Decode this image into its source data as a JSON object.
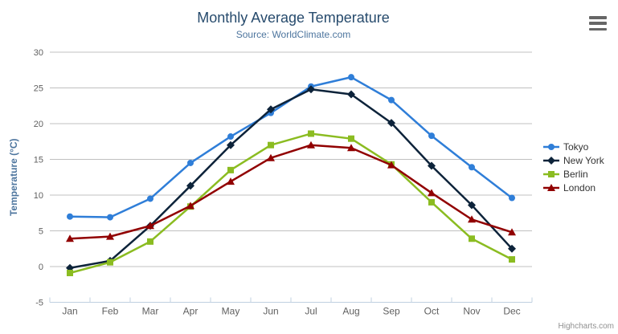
{
  "chart_data": {
    "type": "line",
    "title": "Monthly Average Temperature",
    "subtitle": "Source: WorldClimate.com",
    "categories": [
      "Jan",
      "Feb",
      "Mar",
      "Apr",
      "May",
      "Jun",
      "Jul",
      "Aug",
      "Sep",
      "Oct",
      "Nov",
      "Dec"
    ],
    "series": [
      {
        "name": "Tokyo",
        "color": "#2f7ed8",
        "marker": "circle",
        "values": [
          7.0,
          6.9,
          9.5,
          14.5,
          18.2,
          21.5,
          25.2,
          26.5,
          23.3,
          18.3,
          13.9,
          9.6
        ]
      },
      {
        "name": "New York",
        "color": "#0d233a",
        "marker": "diamond",
        "values": [
          -0.2,
          0.8,
          5.7,
          11.3,
          17.0,
          22.0,
          24.8,
          24.1,
          20.1,
          14.1,
          8.6,
          2.5
        ]
      },
      {
        "name": "Berlin",
        "color": "#8bbc21",
        "marker": "square",
        "values": [
          -0.9,
          0.6,
          3.5,
          8.4,
          13.5,
          17.0,
          18.6,
          17.9,
          14.3,
          9.0,
          3.9,
          1.0
        ]
      },
      {
        "name": "London",
        "color": "#910000",
        "marker": "triangle",
        "values": [
          3.9,
          4.2,
          5.7,
          8.5,
          11.9,
          15.2,
          17.0,
          16.6,
          14.2,
          10.3,
          6.6,
          4.8
        ]
      }
    ],
    "xlabel": "",
    "ylabel": "Temperature (°C)",
    "ylim": [
      -5,
      30
    ],
    "ytick_step": 5,
    "grid": true,
    "legend_position": "right"
  },
  "credits": {
    "label": "Highcharts.com"
  },
  "export_menu": {
    "icon": "hamburger-icon"
  },
  "colors": {
    "title": "#274b6d",
    "subtitle": "#4d759e",
    "axis_title": "#4d759e",
    "tick_label": "#606060",
    "grid_line": "#c0c0c0",
    "axis_line": "#c0d0e0",
    "legend_text": "#333333",
    "credits": "#909090",
    "menu_icon": "#666666",
    "background": "#ffffff"
  }
}
